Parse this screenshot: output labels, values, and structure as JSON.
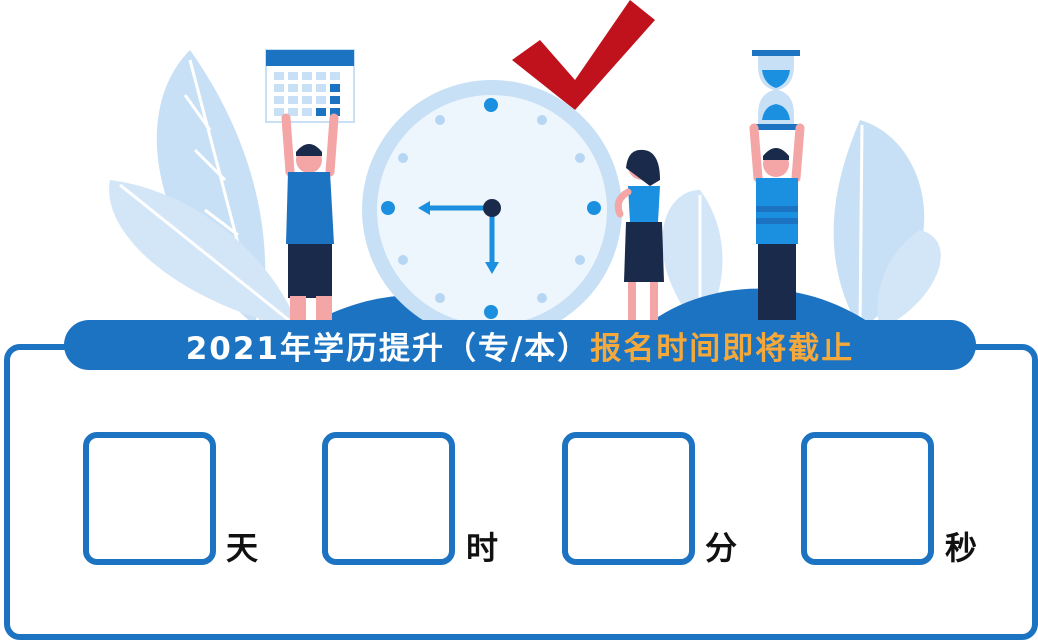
{
  "banner": {
    "title_white": "2021年学历提升（专/本）",
    "title_orange": "报名时间即将截止"
  },
  "countdown": [
    {
      "value": "",
      "unit": "天"
    },
    {
      "value": "",
      "unit": "时"
    },
    {
      "value": "",
      "unit": "分"
    },
    {
      "value": "",
      "unit": "秒"
    }
  ],
  "colors": {
    "primary_blue": "#1b73c2",
    "accent_orange": "#f6a93b",
    "check_red": "#c0121c",
    "light_blue": "#c8e0f6"
  }
}
